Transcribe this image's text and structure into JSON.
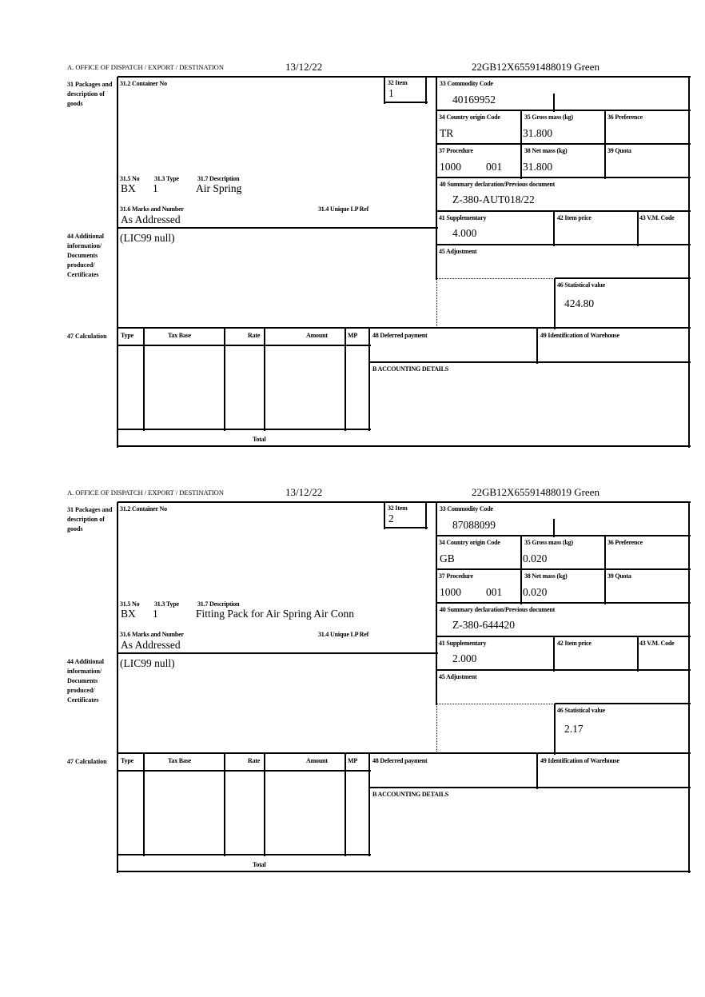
{
  "labels": {
    "office": "A.  OFFICE OF DISPATCH / EXPORT / DESTINATION",
    "box31": "31 Packages and description of goods",
    "container_no": "31.2 Container No",
    "item": "32 Item",
    "no": "31.5 No",
    "type": "31.3 Type",
    "description": "31.7 Description",
    "marks": "31.6 Marks and Number",
    "unique_lp": "31.4 Unique LP Ref",
    "box44": "44 Additional information/ Documents produced/ Certificates",
    "commodity": "33 Commodity Code",
    "country": "34 Country origin Code",
    "gross": "35 Gross mass (kg)",
    "preference": "36 Preference",
    "procedure": "37 Procedure",
    "net": "38 Net mass (kg)",
    "quota": "39 Quota",
    "summary": "40 Summary declaration/Previous document",
    "supplementary": "41 Supplementary",
    "item_price": "42 Item price",
    "vm_code": "43 V.M. Code",
    "adjustment": "45 Adjustment",
    "statistical": "46 Statistical value",
    "box47": "47 Calculation",
    "col_type": "Type",
    "col_tax_base": "Tax Base",
    "col_rate": "Rate",
    "col_amount": "Amount",
    "col_mp": "MP",
    "deferred": "48 Deferred payment",
    "warehouse": "49 Identification of Warehouse",
    "accounting": "B ACCOUNTING DETAILS",
    "total": "Total"
  },
  "items": [
    {
      "date": "13/12/22",
      "reference": "22GB12X65591488019    Green",
      "item_no": "1",
      "no": "BX",
      "type": "1",
      "description": "Air Spring",
      "marks": "As Addressed",
      "additional_info": "(LIC99 null)",
      "commodity_code": "40169952",
      "country_origin": "TR",
      "gross_mass": "31.800",
      "procedure": "1000",
      "procedure_add": "001",
      "net_mass": "31.800",
      "previous_document": "Z-380-AUT018/22",
      "supplementary": "4.000",
      "statistical_value": "424.80"
    },
    {
      "date": "13/12/22",
      "reference": "22GB12X65591488019    Green",
      "item_no": "2",
      "no": "BX",
      "type": "1",
      "description": "Fitting Pack for Air Spring Air Conn",
      "marks": "As Addressed",
      "additional_info": "(LIC99 null)",
      "commodity_code": "87088099",
      "country_origin": "GB",
      "gross_mass": "0.020",
      "procedure": "1000",
      "procedure_add": "001",
      "net_mass": "0.020",
      "previous_document": "Z-380-644420",
      "supplementary": "2.000",
      "statistical_value": "2.17"
    }
  ]
}
